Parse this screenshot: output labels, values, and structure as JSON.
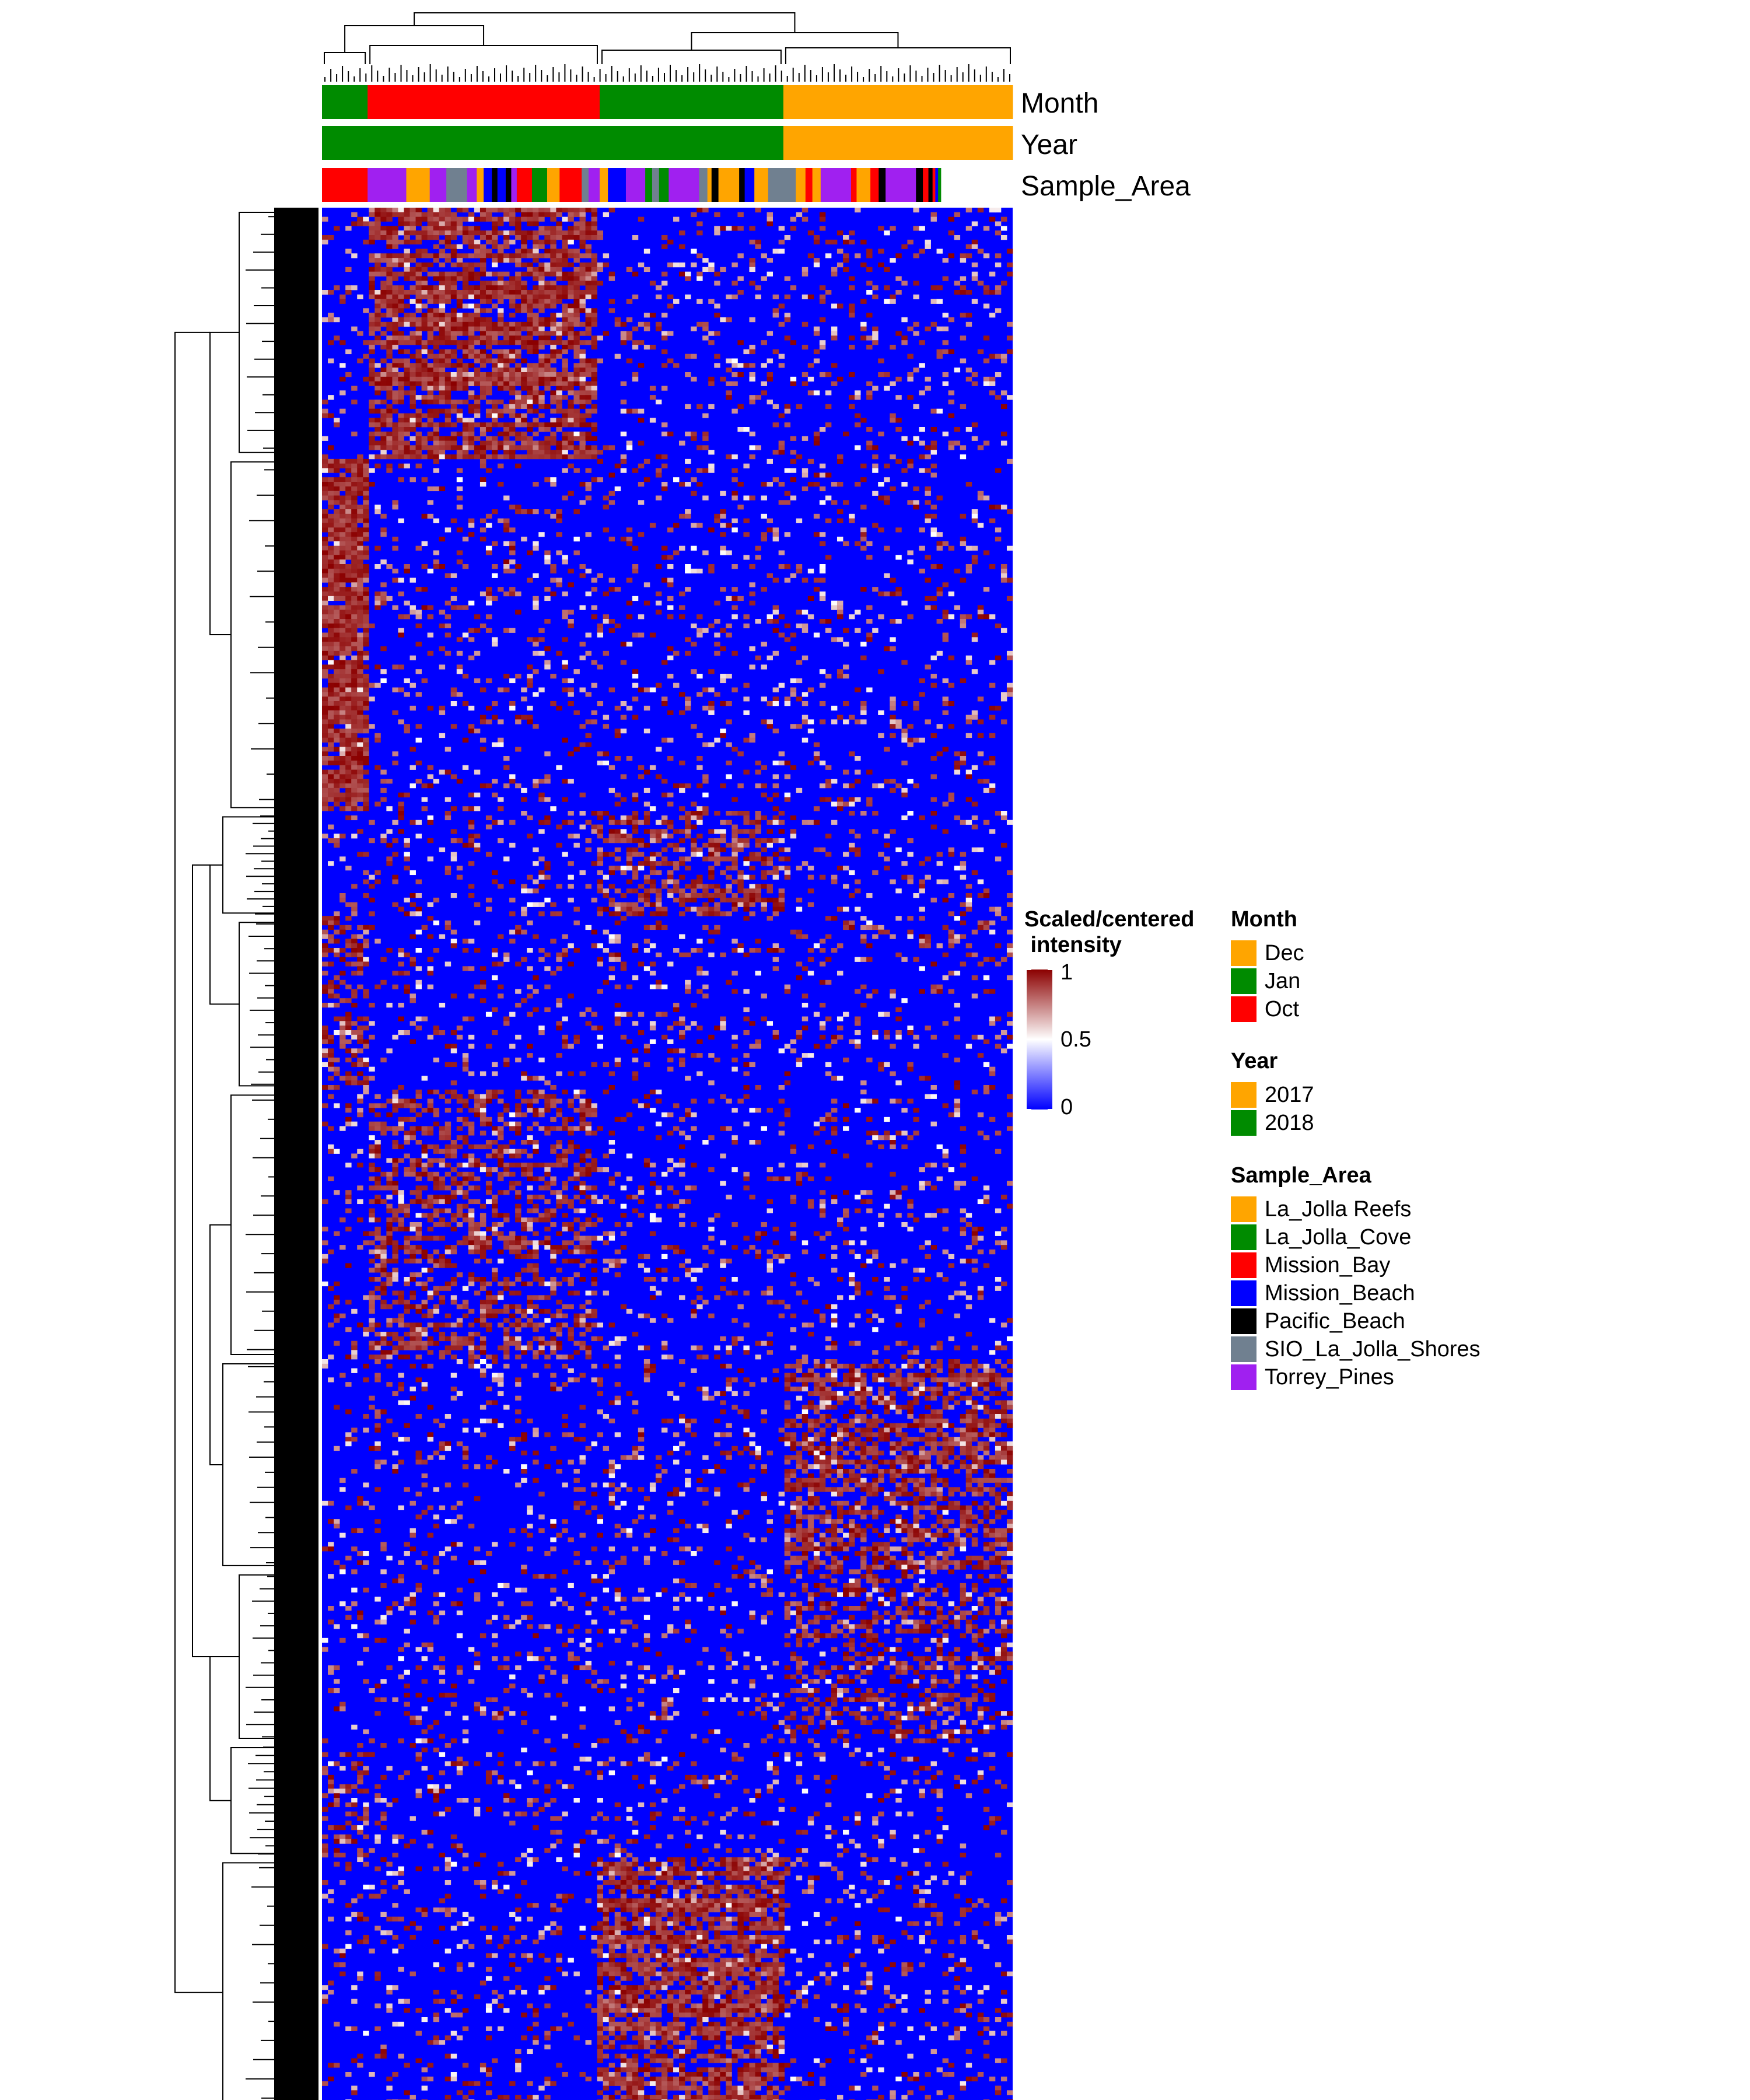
{
  "chart_data": {
    "type": "heatmap",
    "title": "",
    "xlabel": "",
    "ylabel": "",
    "color_scale": {
      "title": "Scaled/centered\n intensity",
      "min": 0,
      "mid": 0.5,
      "max": 1,
      "ticks": [
        "1",
        "0.5",
        "0"
      ],
      "colors": {
        "low": "#0000ff",
        "mid": "#ffffff",
        "high": "#8b0000"
      }
    },
    "column_annotations": [
      {
        "name": "Month",
        "segments": [
          {
            "value": "Jan",
            "fraction": 0.066
          },
          {
            "value": "Oct",
            "fraction": 0.336
          },
          {
            "value": "Jan",
            "fraction": 0.266
          },
          {
            "value": "Dec",
            "fraction": 0.332
          }
        ]
      },
      {
        "name": "Year",
        "segments": [
          {
            "value": "2018",
            "fraction": 0.668
          },
          {
            "value": "2017",
            "fraction": 0.332
          }
        ]
      },
      {
        "name": "Sample_Area",
        "segments": [
          {
            "value": "Mission_Bay",
            "fraction": 0.066
          },
          {
            "value": "Torrey_Pines",
            "fraction": 0.056
          },
          {
            "value": "La_Jolla Reefs",
            "fraction": 0.034
          },
          {
            "value": "Torrey_Pines",
            "fraction": 0.024
          },
          {
            "value": "SIO_La_Jolla_Shores",
            "fraction": 0.03
          },
          {
            "value": "Torrey_Pines",
            "fraction": 0.014
          },
          {
            "value": "La_Jolla Reefs",
            "fraction": 0.01
          },
          {
            "value": "Mission_Beach",
            "fraction": 0.012
          },
          {
            "value": "Pacific_Beach",
            "fraction": 0.008
          },
          {
            "value": "Mission_Beach",
            "fraction": 0.012
          },
          {
            "value": "Pacific_Beach",
            "fraction": 0.008
          },
          {
            "value": "Torrey_Pines",
            "fraction": 0.008
          },
          {
            "value": "Mission_Bay",
            "fraction": 0.022
          },
          {
            "value": "La_Jolla_Cove",
            "fraction": 0.022
          },
          {
            "value": "La_Jolla Reefs",
            "fraction": 0.018
          },
          {
            "value": "Mission_Bay",
            "fraction": 0.032
          },
          {
            "value": "SIO_La_Jolla_Shores",
            "fraction": 0.01
          },
          {
            "value": "Torrey_Pines",
            "fraction": 0.016
          },
          {
            "value": "La_Jolla Reefs",
            "fraction": 0.012
          },
          {
            "value": "Mission_Beach",
            "fraction": 0.026
          },
          {
            "value": "Torrey_Pines",
            "fraction": 0.028
          },
          {
            "value": "La_Jolla_Cove",
            "fraction": 0.01
          },
          {
            "value": "SIO_La_Jolla_Shores",
            "fraction": 0.01
          },
          {
            "value": "La_Jolla_Cove",
            "fraction": 0.014
          },
          {
            "value": "Torrey_Pines",
            "fraction": 0.044
          },
          {
            "value": "SIO_La_Jolla_Shores",
            "fraction": 0.012
          },
          {
            "value": "La_Jolla Reefs",
            "fraction": 0.006
          },
          {
            "value": "Pacific_Beach",
            "fraction": 0.01
          },
          {
            "value": "La_Jolla Reefs",
            "fraction": 0.03
          },
          {
            "value": "Pacific_Beach",
            "fraction": 0.008
          },
          {
            "value": "Mission_Beach",
            "fraction": 0.014
          },
          {
            "value": "La_Jolla Reefs",
            "fraction": 0.02
          },
          {
            "value": "SIO_La_Jolla_Shores",
            "fraction": 0.04
          },
          {
            "value": "La_Jolla Reefs",
            "fraction": 0.014
          },
          {
            "value": "Mission_Bay",
            "fraction": 0.01
          },
          {
            "value": "La_Jolla Reefs",
            "fraction": 0.012
          },
          {
            "value": "Torrey_Pines",
            "fraction": 0.044
          },
          {
            "value": "Mission_Bay",
            "fraction": 0.008
          },
          {
            "value": "La_Jolla Reefs",
            "fraction": 0.02
          },
          {
            "value": "Mission_Bay",
            "fraction": 0.012
          },
          {
            "value": "Pacific_Beach",
            "fraction": 0.01
          },
          {
            "value": "Torrey_Pines",
            "fraction": 0.044
          },
          {
            "value": "Pacific_Beach",
            "fraction": 0.01
          },
          {
            "value": "Mission_Bay",
            "fraction": 0.008
          },
          {
            "value": "Pacific_Beach",
            "fraction": 0.006
          },
          {
            "value": "Mission_Bay",
            "fraction": 0.004
          },
          {
            "value": "Mission_Beach",
            "fraction": 0.004
          },
          {
            "value": "La_Jolla_Cove",
            "fraction": 0.004
          }
        ]
      }
    ],
    "legends": [
      {
        "title": "Month",
        "items": [
          {
            "label": "Dec",
            "color": "#ffa500"
          },
          {
            "label": "Jan",
            "color": "#008b00"
          },
          {
            "label": "Oct",
            "color": "#ff0000"
          }
        ]
      },
      {
        "title": "Year",
        "items": [
          {
            "label": "2017",
            "color": "#ffa500"
          },
          {
            "label": "2018",
            "color": "#008b00"
          }
        ]
      },
      {
        "title": "Sample_Area",
        "items": [
          {
            "label": "La_Jolla Reefs",
            "color": "#ffa500"
          },
          {
            "label": "La_Jolla_Cove",
            "color": "#008b00"
          },
          {
            "label": "Mission_Bay",
            "color": "#ff0000"
          },
          {
            "label": "Mission_Beach",
            "color": "#0000ff"
          },
          {
            "label": "Pacific_Beach",
            "color": "#000000"
          },
          {
            "label": "SIO_La_Jolla_Shores",
            "color": "#708090"
          },
          {
            "label": "Torrey_Pines",
            "color": "#a020f0"
          }
        ]
      }
    ],
    "column_clusters": [
      {
        "from": 0.0,
        "to": 0.066
      },
      {
        "from": 0.066,
        "to": 0.402
      },
      {
        "from": 0.402,
        "to": 0.668
      },
      {
        "from": 0.668,
        "to": 1.0
      }
    ],
    "row_blocks": [
      {
        "from": 0.0,
        "to": 0.13,
        "high_cluster": 1,
        "level": 0.7
      },
      {
        "from": 0.13,
        "to": 0.315,
        "high_cluster": 0,
        "level": 0.95
      },
      {
        "from": 0.315,
        "to": 0.37,
        "high_cluster": 2,
        "level": 0.45
      },
      {
        "from": 0.37,
        "to": 0.46,
        "high_cluster": 0,
        "level": 0.4
      },
      {
        "from": 0.46,
        "to": 0.6,
        "high_cluster": 1,
        "level": 0.4
      },
      {
        "from": 0.6,
        "to": 0.71,
        "high_cluster": 3,
        "level": 0.55
      },
      {
        "from": 0.71,
        "to": 0.8,
        "high_cluster": 3,
        "level": 0.35
      },
      {
        "from": 0.8,
        "to": 0.86,
        "high_cluster": 0,
        "level": 0.3
      },
      {
        "from": 0.86,
        "to": 1.0,
        "high_cluster": 2,
        "level": 0.7
      }
    ]
  }
}
